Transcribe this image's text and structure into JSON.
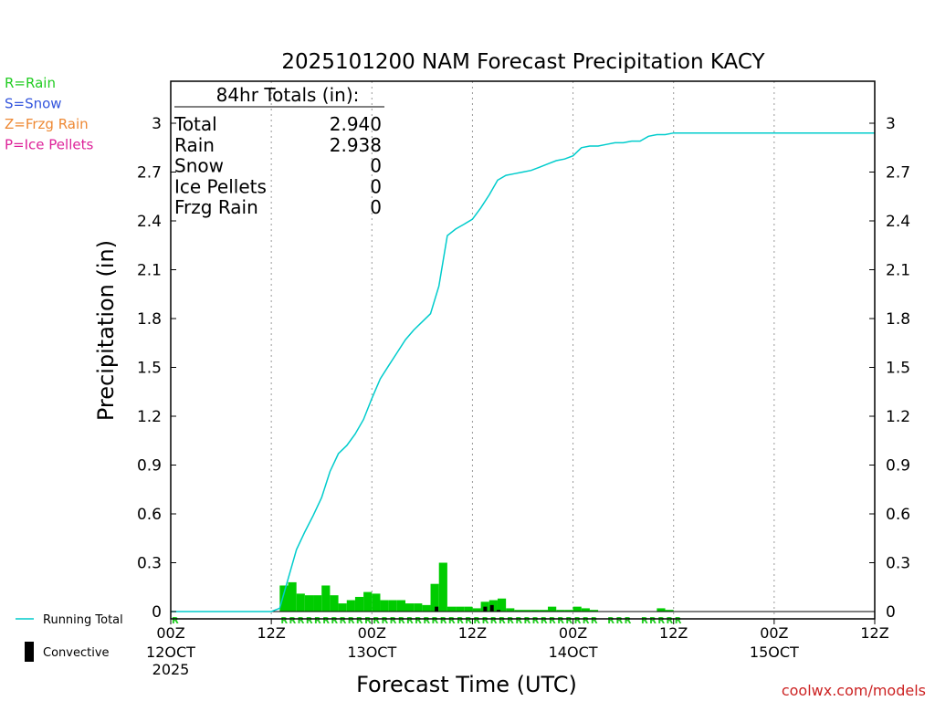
{
  "chart_data": {
    "type": "bar",
    "title": "2025101200 NAM Forecast Precipitation KACY",
    "ylabel": "Precipitation (in)",
    "xlabel": "Forecast Time (UTC)",
    "ylim": [
      0,
      3.2
    ],
    "yticks": [
      0,
      0.3,
      0.6,
      0.9,
      1.2,
      1.5,
      1.8,
      2.1,
      2.4,
      2.7,
      3
    ],
    "ytick_labels": [
      "0",
      "0.3",
      "0.6",
      "0.9",
      "1.2",
      "1.5",
      "1.8",
      "2.1",
      "2.4",
      "2.7",
      "3"
    ],
    "xlim_hours": [
      0,
      84
    ],
    "grid_hours": [
      12,
      24,
      36,
      48,
      60,
      72
    ],
    "xticks": [
      {
        "hour": 0,
        "l1": "00Z",
        "l2": "12OCT",
        "l3": "2025"
      },
      {
        "hour": 12,
        "l1": "12Z",
        "l2": "",
        "l3": ""
      },
      {
        "hour": 24,
        "l1": "00Z",
        "l2": "13OCT",
        "l3": ""
      },
      {
        "hour": 36,
        "l1": "12Z",
        "l2": "",
        "l3": ""
      },
      {
        "hour": 48,
        "l1": "00Z",
        "l2": "14OCT",
        "l3": ""
      },
      {
        "hour": 60,
        "l1": "12Z",
        "l2": "",
        "l3": ""
      },
      {
        "hour": 72,
        "l1": "00Z",
        "l2": "15OCT",
        "l3": ""
      },
      {
        "hour": 84,
        "l1": "12Z",
        "l2": "",
        "l3": ""
      }
    ],
    "totals_title": "84hr Totals (in):",
    "totals": [
      {
        "label": "Total",
        "value": "2.940"
      },
      {
        "label": "Rain",
        "value": "2.938"
      },
      {
        "label": "Snow",
        "value": "0"
      },
      {
        "label": "Ice Pellets",
        "value": "0"
      },
      {
        "label": "Frzg Rain",
        "value": "0"
      }
    ],
    "ptype_legend": [
      {
        "text": "R=Rain",
        "color": "#22cc22"
      },
      {
        "text": "S=Snow",
        "color": "#3355dd"
      },
      {
        "text": "Z=Frzg Rain",
        "color": "#ee8833"
      },
      {
        "text": "P=Ice Pellets",
        "color": "#dd2299"
      }
    ],
    "series": [
      {
        "name": "Hourly Precipitation",
        "color": "#00cc00",
        "start_hours": [
          13,
          14,
          15,
          16,
          17,
          18,
          19,
          20,
          21,
          22,
          23,
          24,
          25,
          26,
          27,
          28,
          29,
          30,
          31,
          32,
          33,
          34,
          35,
          36,
          37,
          38,
          39,
          40,
          41,
          42,
          43,
          44,
          45,
          46,
          47,
          48,
          49,
          50,
          51,
          52,
          53,
          54,
          55,
          56,
          57,
          58,
          59
        ],
        "values": [
          0.16,
          0.18,
          0.11,
          0.1,
          0.1,
          0.16,
          0.1,
          0.05,
          0.07,
          0.09,
          0.12,
          0.11,
          0.07,
          0.07,
          0.07,
          0.05,
          0.05,
          0.04,
          0.17,
          0.3,
          0.03,
          0.03,
          0.03,
          0.02,
          0.06,
          0.07,
          0.08,
          0.02,
          0.01,
          0.01,
          0.01,
          0.01,
          0.03,
          0.01,
          0.01,
          0.03,
          0.02,
          0.01,
          0.0,
          0.0,
          0.0,
          0.0,
          0.0,
          0.0,
          0.0,
          0.02,
          0.01
        ]
      },
      {
        "name": "Convective",
        "color": "#000000",
        "start_hours": [
          31.5,
          37.3,
          38.1,
          38.9
        ],
        "values": [
          0.03,
          0.03,
          0.04,
          0.01
        ]
      },
      {
        "name": "Running Total",
        "color": "#00cccc",
        "hours": [
          0,
          1,
          2,
          3,
          4,
          5,
          6,
          7,
          8,
          9,
          10,
          11,
          12,
          13,
          14,
          15,
          16,
          17,
          18,
          19,
          20,
          21,
          22,
          23,
          24,
          25,
          26,
          27,
          28,
          29,
          30,
          31,
          32,
          33,
          34,
          35,
          36,
          37,
          38,
          39,
          40,
          41,
          42,
          43,
          44,
          45,
          46,
          47,
          48,
          49,
          50,
          51,
          52,
          53,
          54,
          55,
          56,
          57,
          58,
          59,
          60,
          61,
          62,
          63,
          64,
          65,
          66,
          67,
          68,
          69,
          70,
          71,
          72,
          73,
          74,
          75,
          76,
          77,
          78,
          79,
          80,
          81,
          82,
          83,
          84
        ],
        "values": [
          0,
          0,
          0,
          0,
          0,
          0,
          0,
          0,
          0,
          0,
          0,
          0,
          0,
          0.02,
          0.2,
          0.38,
          0.49,
          0.59,
          0.7,
          0.86,
          0.97,
          1.02,
          1.09,
          1.18,
          1.31,
          1.43,
          1.51,
          1.59,
          1.67,
          1.73,
          1.78,
          1.83,
          2.0,
          2.31,
          2.35,
          2.38,
          2.41,
          2.48,
          2.56,
          2.65,
          2.68,
          2.69,
          2.7,
          2.71,
          2.73,
          2.75,
          2.77,
          2.78,
          2.8,
          2.85,
          2.86,
          2.86,
          2.87,
          2.88,
          2.88,
          2.89,
          2.89,
          2.92,
          2.93,
          2.93,
          2.94,
          2.94,
          2.94,
          2.94,
          2.94,
          2.94,
          2.94,
          2.94,
          2.94,
          2.94,
          2.94,
          2.94,
          2.94,
          2.94,
          2.94,
          2.94,
          2.94,
          2.94,
          2.94,
          2.94,
          2.94,
          2.94,
          2.94,
          2.94,
          2.94
        ]
      }
    ],
    "ptype_strip": {
      "color": "#22cc22",
      "label": "R",
      "hours": [
        0,
        13,
        14,
        15,
        16,
        17,
        18,
        19,
        20,
        21,
        22,
        23,
        24,
        25,
        26,
        27,
        28,
        29,
        30,
        31,
        32,
        33,
        34,
        35,
        36,
        37,
        38,
        39,
        40,
        41,
        42,
        43,
        44,
        45,
        46,
        47,
        48,
        49,
        50,
        52,
        53,
        54,
        56,
        57,
        58,
        59,
        60
      ]
    },
    "legend": [
      {
        "name": "Running Total",
        "symbol": "line",
        "color": "#00cccc"
      },
      {
        "name": "Convective",
        "symbol": "bar",
        "color": "#000000"
      }
    ],
    "source": "coolwx.com/models"
  }
}
